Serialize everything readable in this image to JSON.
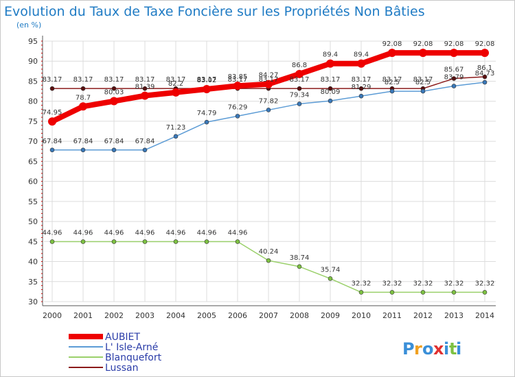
{
  "chart_data": {
    "type": "line",
    "title": "Evolution du Taux de Taxe Foncière sur les Propriétés Non Bâties",
    "subtitle": "(en %)",
    "ylim": [
      30,
      95
    ],
    "yticks": [
      30,
      35,
      40,
      45,
      50,
      55,
      60,
      65,
      70,
      75,
      80,
      85,
      90,
      95
    ],
    "x": [
      2000,
      2001,
      2002,
      2003,
      2004,
      2005,
      2006,
      2007,
      2008,
      2009,
      2010,
      2011,
      2012,
      2013,
      2014
    ],
    "series": [
      {
        "name": "Lussan",
        "color": "#8b1a1a",
        "point_color": "#5a0f0f",
        "values": [
          83.17,
          83.17,
          83.17,
          83.17,
          83.17,
          83.17,
          83.17,
          83.17,
          83.17,
          83.17,
          83.17,
          83.17,
          83.17,
          85.67,
          86.1
        ],
        "labels": [
          "83.17",
          "83.17",
          "83.17",
          "83.17",
          "83.17",
          "83.17",
          "83.17",
          "83.17",
          "83.17",
          "83.17",
          "83.17",
          "83.17",
          "83.17",
          "85.67",
          "86.1"
        ]
      },
      {
        "name": "L' Isle-Arné",
        "color": "#5b9bd5",
        "point_color": "#3a78b8",
        "values": [
          67.84,
          67.84,
          67.84,
          67.84,
          71.23,
          74.79,
          76.29,
          77.82,
          79.34,
          80.09,
          81.29,
          82.5,
          82.5,
          83.79,
          84.73
        ],
        "labels": [
          "67.84",
          "67.84",
          "67.84",
          "67.84",
          "71.23",
          "74.79",
          "76.29",
          "77.82",
          "79.34",
          "80.09",
          "81.29",
          "82.5",
          "82.5",
          "83.79",
          "84.73"
        ]
      },
      {
        "name": "Blanquefort",
        "color": "#9ad06a",
        "point_color": "#7dc142",
        "values": [
          44.96,
          44.96,
          44.96,
          44.96,
          44.96,
          44.96,
          44.96,
          40.24,
          38.74,
          35.74,
          32.32,
          32.32,
          32.32,
          32.32,
          32.32
        ],
        "labels": [
          "44.96",
          "44.96",
          "44.96",
          "44.96",
          "44.96",
          "44.96",
          "44.96",
          "40.24",
          "38.74",
          "35.74",
          "32.32",
          "32.32",
          "32.32",
          "32.32",
          "32.32"
        ]
      },
      {
        "name": "AUBIET",
        "color": "#ee0000",
        "point_color": "#ee0000",
        "values": [
          74.95,
          78.7,
          80.03,
          81.39,
          82.2,
          83.02,
          83.85,
          84.27,
          86.8,
          89.4,
          89.4,
          92.08,
          92.08,
          92.08,
          92.08
        ],
        "labels": [
          "74.95",
          "78.7",
          "80.03",
          "81.39",
          "82.2",
          "83.02",
          "83.85",
          "84.27",
          "86.8",
          "89.4",
          "89.4",
          "92.08",
          "92.08",
          "92.08",
          "92.08"
        ]
      }
    ],
    "legend": [
      "AUBIET",
      "L' Isle-Arné",
      "Blanquefort",
      "Lussan"
    ],
    "legend_position": "bottom-left"
  },
  "logo": {
    "letters": [
      "P",
      "r",
      "o",
      "x",
      "i",
      "t",
      "i"
    ],
    "colors": [
      "#3a8fd8",
      "#f0a020",
      "#3a8fd8",
      "#e03030",
      "#3a8fd8",
      "#7dc142",
      "#3a8fd8"
    ]
  }
}
